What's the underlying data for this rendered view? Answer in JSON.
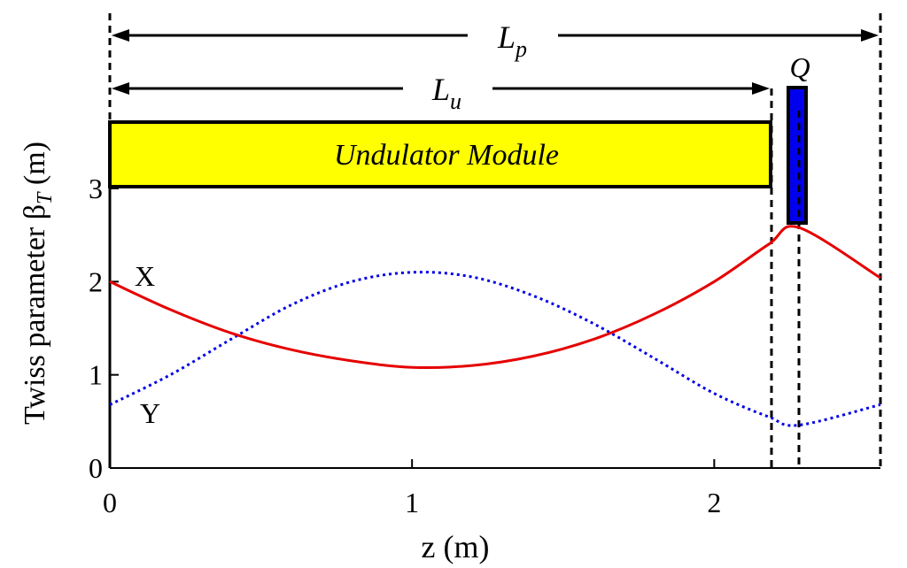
{
  "chart_data": {
    "type": "line",
    "xlabel": "z (m)",
    "ylabel": "Twiss parameter β",
    "ylabel_sub": "T",
    "ylabel_unit": " (m)",
    "xlim": [
      0,
      2.55
    ],
    "ylim": [
      0,
      3
    ],
    "xticks": [
      {
        "value": 0,
        "label": "0"
      },
      {
        "value": 1,
        "label": "1"
      },
      {
        "value": 2,
        "label": "2"
      }
    ],
    "yticks": [
      {
        "value": 0,
        "label": "0"
      },
      {
        "value": 1,
        "label": "1"
      },
      {
        "value": 2,
        "label": "2"
      },
      {
        "value": 3,
        "label": "3"
      }
    ],
    "grid": false,
    "series": [
      {
        "name": "X",
        "color": "#e60000",
        "style": "solid",
        "x": [
          0,
          0.2,
          0.4,
          0.6,
          0.8,
          1.0,
          1.2,
          1.4,
          1.6,
          1.8,
          2.0,
          2.18,
          2.28,
          2.55
        ],
        "y": [
          2.0,
          1.7,
          1.45,
          1.27,
          1.15,
          1.08,
          1.1,
          1.2,
          1.38,
          1.65,
          2.0,
          2.4,
          2.58,
          2.04
        ]
      },
      {
        "name": "Y",
        "color": "#0000e6",
        "style": "dotted",
        "x": [
          0,
          0.2,
          0.4,
          0.6,
          0.8,
          1.0,
          1.2,
          1.4,
          1.6,
          1.8,
          2.0,
          2.18,
          2.28,
          2.55
        ],
        "y": [
          0.68,
          1.0,
          1.38,
          1.75,
          2.0,
          2.1,
          2.05,
          1.85,
          1.55,
          1.18,
          0.8,
          0.55,
          0.46,
          0.68
        ]
      }
    ],
    "labels": {
      "x_series": "X",
      "y_series": "Y",
      "module": "Undulator Module",
      "quad": "Q",
      "lp": "L",
      "lp_sub": "p",
      "lu": "L",
      "lu_sub": "u"
    },
    "markers": {
      "module_end_z": 2.18,
      "quad_z": 2.28,
      "period_end_z": 2.55
    },
    "colors": {
      "module_fill": "#ffff00",
      "quad_fill": "#0000ee",
      "x_line": "#e60000",
      "y_line": "#0000e6"
    }
  }
}
